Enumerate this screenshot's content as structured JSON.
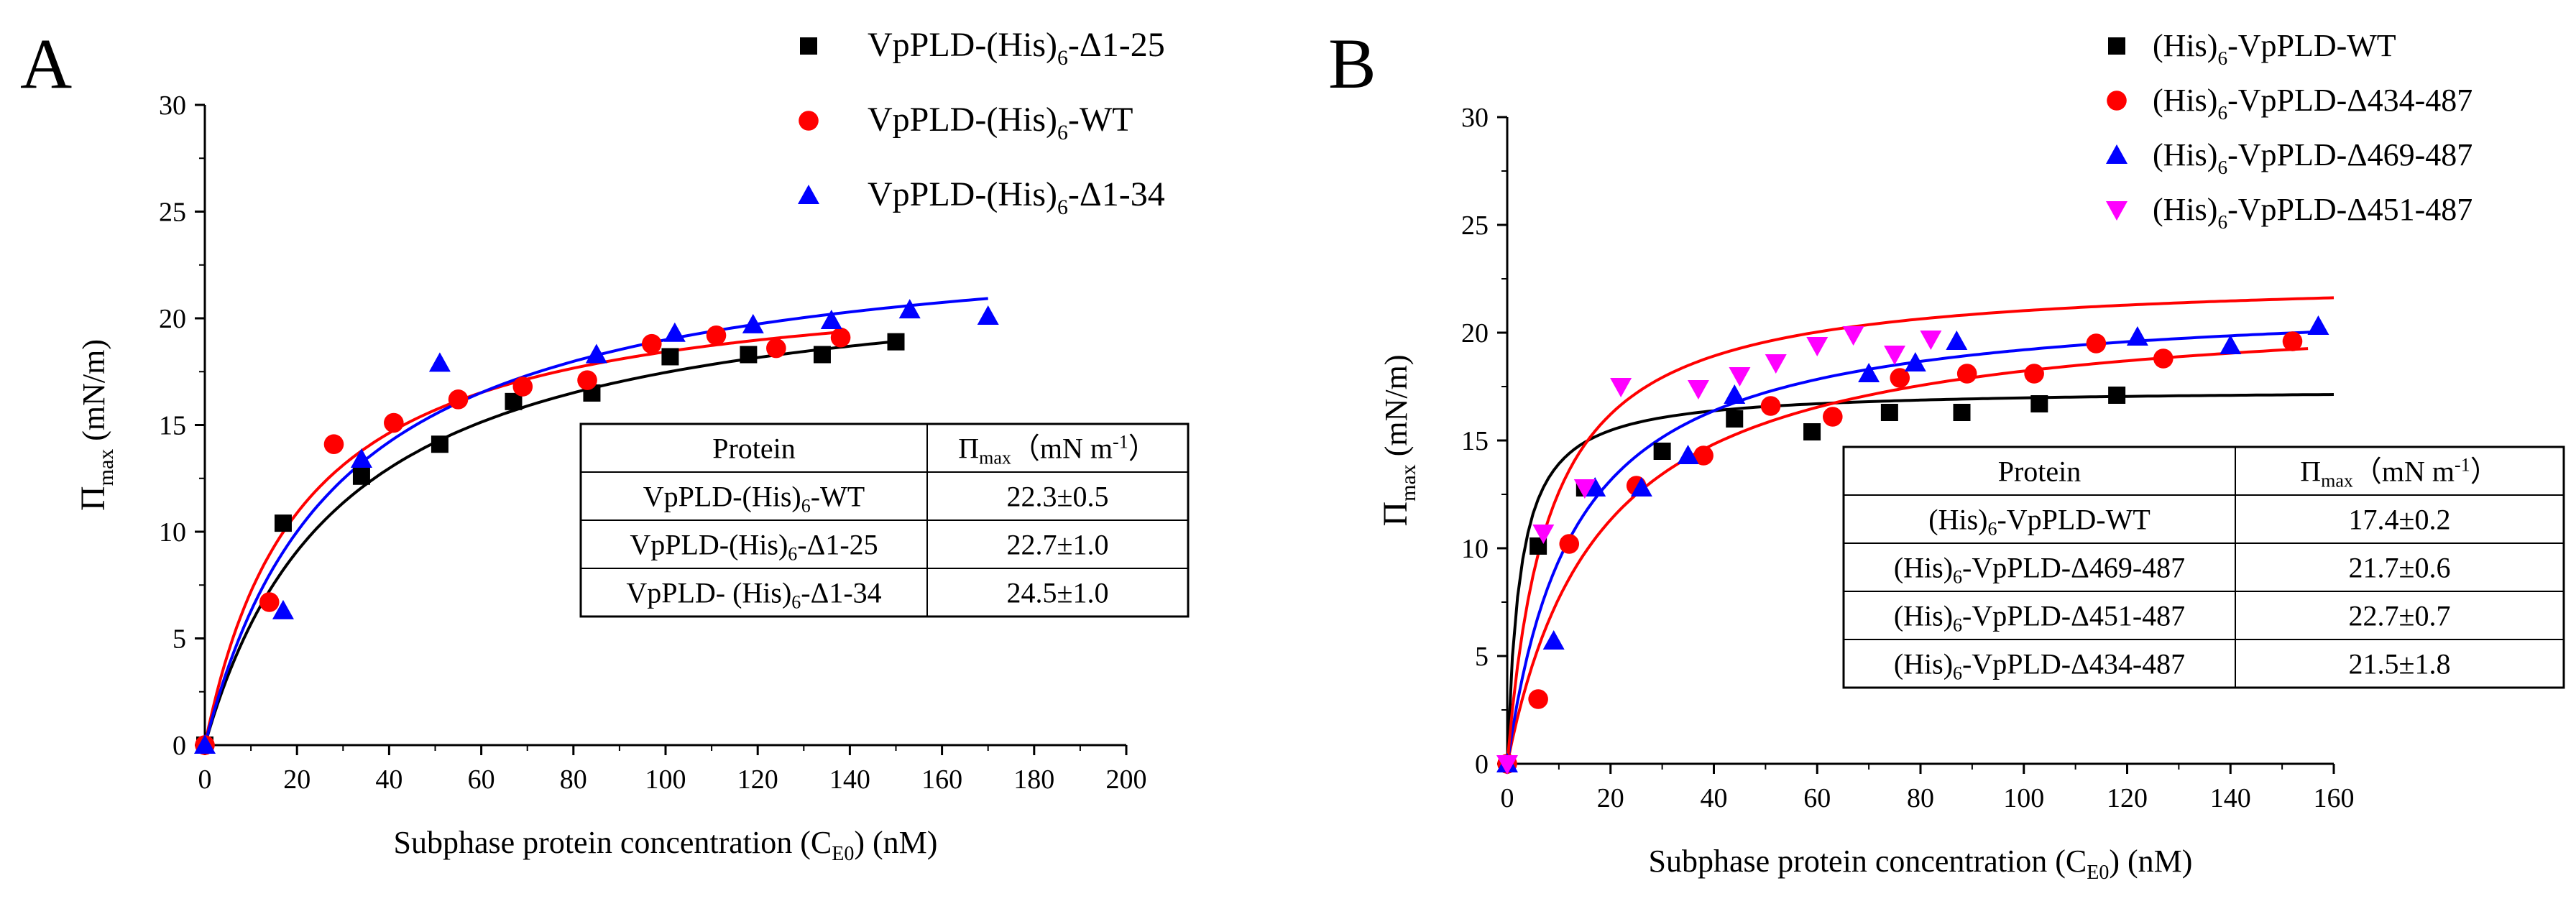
{
  "chart_data": [
    {
      "panel_label": "A",
      "type": "scatter",
      "title": "",
      "xlabel": "Subphase protein concentration (C",
      "xlabel_sub": "E0",
      "xlabel_tail": ") (nM)",
      "ylabel": "Π",
      "ylabel_sub": "max",
      "ylabel_tail": " (mN/m)",
      "xlim": [
        0,
        200
      ],
      "ylim": [
        0,
        30
      ],
      "xticks": [
        0,
        20,
        40,
        60,
        80,
        100,
        120,
        140,
        160,
        180,
        200
      ],
      "yticks": [
        0,
        5,
        10,
        15,
        20,
        25,
        30
      ],
      "grid": false,
      "legend_position": "top-right",
      "series": [
        {
          "name": "VpPLD-(His)6-Δ1-25",
          "legend_pre": "VpPLD-(His)",
          "legend_sub": "6",
          "legend_post": "-Δ1-25",
          "marker": "square",
          "color": "#000000",
          "x": [
            0,
            17,
            34,
            51,
            67,
            84,
            101,
            118,
            134,
            150
          ],
          "y": [
            0,
            10.4,
            12.6,
            14.1,
            16.1,
            16.5,
            18.2,
            18.3,
            18.3,
            18.9
          ],
          "fit_max": 22.7,
          "fit_k": 30,
          "fit_xmax": 150
        },
        {
          "name": "VpPLD-(His)6-WT",
          "legend_pre": "VpPLD-(His)",
          "legend_sub": "6",
          "legend_post": "-WT",
          "marker": "circle",
          "color": "#ff0000",
          "x": [
            0,
            14,
            28,
            41,
            55,
            69,
            83,
            97,
            111,
            124,
            138
          ],
          "y": [
            0,
            6.7,
            14.1,
            15.1,
            16.2,
            16.8,
            17.1,
            18.8,
            19.2,
            18.6,
            19.1
          ],
          "fit_max": 22.3,
          "fit_k": 21,
          "fit_xmax": 138
        },
        {
          "name": "VpPLD-(His)6-Δ1-34",
          "legend_pre": "VpPLD-(His)",
          "legend_sub": "6",
          "legend_post": "-Δ1-34",
          "marker": "triangle",
          "color": "#0000ff",
          "x": [
            0,
            17,
            34,
            51,
            85,
            102,
            119,
            136,
            153,
            170
          ],
          "y": [
            0,
            6.3,
            13.4,
            17.9,
            18.3,
            19.3,
            19.7,
            19.9,
            20.4,
            20.1
          ],
          "fit_max": 24.5,
          "fit_k": 29,
          "fit_xmax": 170
        }
      ],
      "table": {
        "header_protein": "Protein",
        "header_value_main": "Π",
        "header_value_sub": "max",
        "header_value_tail": "（mN m",
        "header_value_sup": "-1",
        "header_value_close": "）",
        "rows": [
          {
            "pre": "VpPLD-(His)",
            "sub": "6",
            "post": "-WT",
            "value": "22.3±0.5"
          },
          {
            "pre": "VpPLD-(His)",
            "sub": "6",
            "post": "-Δ1-25",
            "value": "22.7±1.0"
          },
          {
            "pre": "VpPLD- (His)",
            "sub": "6",
            "post": "-Δ1-34",
            "value": "24.5±1.0"
          }
        ]
      }
    },
    {
      "panel_label": "B",
      "type": "scatter",
      "title": "",
      "xlabel": "Subphase protein concentration (C",
      "xlabel_sub": "E0",
      "xlabel_tail": ") (nM)",
      "ylabel": "Π",
      "ylabel_sub": "max",
      "ylabel_tail": " (mN/m)",
      "xlim": [
        0,
        160
      ],
      "ylim": [
        0,
        30
      ],
      "xticks": [
        0,
        20,
        40,
        60,
        80,
        100,
        120,
        140,
        160
      ],
      "yticks": [
        0,
        5,
        10,
        15,
        20,
        25,
        30
      ],
      "grid": false,
      "legend_position": "top-right",
      "series": [
        {
          "name": "(His)6-VpPLD-WT",
          "legend_pre": "(His)",
          "legend_sub": "6",
          "legend_post": "-VpPLD-WT",
          "marker": "square",
          "color": "#000000",
          "x": [
            0,
            6,
            15,
            30,
            44,
            59,
            74,
            88,
            103,
            118
          ],
          "y": [
            0,
            10.1,
            12.8,
            14.5,
            16.0,
            15.4,
            16.3,
            16.3,
            16.7,
            17.1
          ],
          "fit_max": 17.4,
          "fit_k": 2.5,
          "fit_xmax": 160
        },
        {
          "name": "(His)6-VpPLD-Δ434-487",
          "legend_pre": "(His)",
          "legend_sub": "6",
          "legend_post": "-VpPLD-Δ434-487",
          "marker": "circle",
          "color": "#ff0000",
          "x": [
            0,
            6,
            12,
            25,
            38,
            51,
            63,
            76,
            89,
            102,
            114,
            127,
            152
          ],
          "y": [
            0,
            3.0,
            10.2,
            12.9,
            14.3,
            16.6,
            16.1,
            17.9,
            18.1,
            18.1,
            19.5,
            18.8,
            19.6
          ],
          "fit_max": 21.5,
          "fit_k": 18,
          "fit_xmax": 155
        },
        {
          "name": "(His)6-VpPLD-Δ469-487",
          "legend_pre": "(His)",
          "legend_sub": "6",
          "legend_post": "-VpPLD-Δ469-487",
          "marker": "triangle",
          "color": "#0000ff",
          "x": [
            0,
            9,
            17,
            26,
            35,
            44,
            70,
            79,
            87,
            122,
            140,
            157
          ],
          "y": [
            0,
            5.7,
            12.8,
            12.8,
            14.3,
            17.1,
            18.1,
            18.6,
            19.6,
            19.8,
            19.4,
            20.3
          ],
          "fit_max": 21.7,
          "fit_k": 13,
          "fit_xmax": 157
        },
        {
          "name": "(His)6-VpPLD-Δ451-487",
          "legend_pre": "(His)",
          "legend_sub": "6",
          "legend_post": "-VpPLD-Δ451-487",
          "marker": "triangle-down",
          "color": "#ff00ff",
          "x": [
            0,
            7,
            15,
            22,
            37,
            45,
            52,
            60,
            67,
            75,
            82
          ],
          "y": [
            0,
            10.7,
            12.8,
            17.5,
            17.4,
            18.0,
            18.6,
            19.4,
            19.9,
            19.0,
            19.7
          ],
          "fit_max": 22.7,
          "fit_k": 8,
          "fit_xmax": 160,
          "fit_color": "#ff0000"
        }
      ],
      "table": {
        "header_protein": "Protein",
        "header_value_main": "Π",
        "header_value_sub": "max",
        "header_value_tail": "（mN m",
        "header_value_sup": "-1",
        "header_value_close": "）",
        "rows": [
          {
            "pre": "(His)",
            "sub": "6",
            "post": "-VpPLD-WT",
            "value": "17.4±0.2"
          },
          {
            "pre": "(His)",
            "sub": "6",
            "post": "-VpPLD-Δ469-487",
            "value": "21.7±0.6"
          },
          {
            "pre": "(His)",
            "sub": "6",
            "post": "-VpPLD-Δ451-487",
            "value": "22.7±0.7"
          },
          {
            "pre": "(His)",
            "sub": "6",
            "post": "-VpPLD-Δ434-487",
            "value": "21.5±1.8"
          }
        ]
      }
    }
  ]
}
